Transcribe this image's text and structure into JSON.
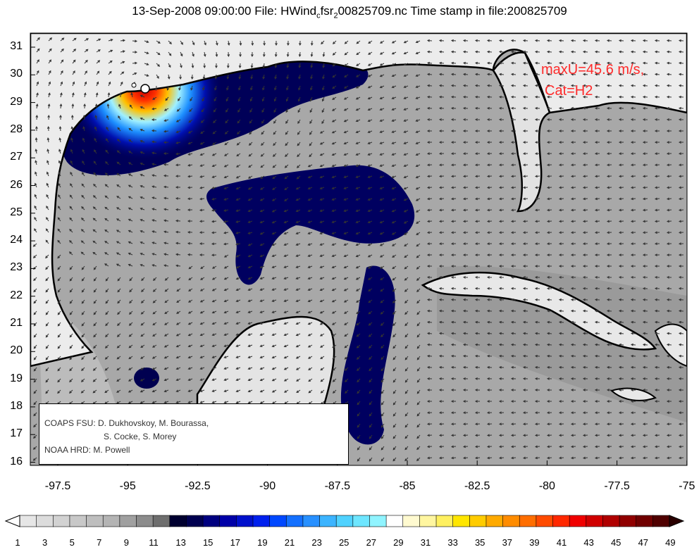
{
  "title": {
    "date": "13-Sep-2008 09:00:00",
    "file_label": "File:",
    "file_pre": "HWind",
    "file_sub_c": "c",
    "file_mid": "fsr",
    "file_sub_2": "2",
    "file_post": "00825709.nc",
    "stamp_label": "Time stamp in file:",
    "stamp_value": "200825709"
  },
  "annotation": {
    "line1": "maxU=45.6 m/s,",
    "line2": "Cat=H2",
    "color": "#ff2a2a"
  },
  "credits": {
    "line1": "COAPS FSU: D. Dukhovskoy, M. Bourassa,",
    "line2": "S. Cocke, S. Morey",
    "line3": "NOAA HRD:  M. Powell"
  },
  "axes": {
    "y_ticks": [
      "31",
      "30",
      "29",
      "28",
      "27",
      "26",
      "25",
      "24",
      "23",
      "22",
      "21",
      "20",
      "19",
      "18",
      "17",
      "16"
    ],
    "x_ticks": [
      "-97.5",
      "-95",
      "-92.5",
      "-90",
      "-87.5",
      "-85",
      "-82.5",
      "-80",
      "-77.5",
      "-75"
    ]
  },
  "colorbar": {
    "labels": [
      "1",
      "3",
      "5",
      "7",
      "9",
      "11",
      "13",
      "15",
      "17",
      "19",
      "21",
      "23",
      "25",
      "27",
      "29",
      "31",
      "33",
      "35",
      "37",
      "39",
      "41",
      "43",
      "45",
      "47",
      "49"
    ],
    "colors": [
      "#e6e6e6",
      "#dcdcdc",
      "#d2d2d2",
      "#c8c8c8",
      "#bebebe",
      "#b4b4b4",
      "#a0a0a0",
      "#8c8c8c",
      "#6e6e6e",
      "#000030",
      "#000050",
      "#000080",
      "#0000a8",
      "#0010cc",
      "#0020ee",
      "#0048ff",
      "#1470ff",
      "#2890ff",
      "#3cb4ff",
      "#50d2ff",
      "#6ee6ff",
      "#90f4ff",
      "#ffffff",
      "#fffad0",
      "#fff6a0",
      "#fff060",
      "#ffe600",
      "#ffcc00",
      "#ffaa00",
      "#ff8c00",
      "#ff6e00",
      "#ff4b00",
      "#ff2800",
      "#f00000",
      "#d00000",
      "#b00000",
      "#900000",
      "#700000",
      "#500000"
    ]
  },
  "map_data": {
    "storm_center": {
      "lon": -94.4,
      "lat": 29.5
    },
    "max_wind_ms": 45.6,
    "category": "H2",
    "lon_range": [
      -98.8,
      -75
    ],
    "lat_range": [
      16,
      31.5
    ]
  }
}
